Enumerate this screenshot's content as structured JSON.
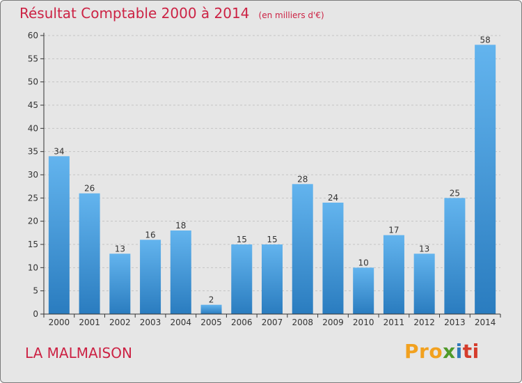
{
  "chart_data": {
    "type": "bar",
    "title": "Résultat Comptable 2000 à 2014",
    "subtitle": "(en milliers d'€)",
    "xlabel": "",
    "ylabel": "",
    "ylim": [
      0,
      60
    ],
    "yticks": [
      0,
      5,
      10,
      15,
      20,
      25,
      30,
      35,
      40,
      45,
      50,
      55,
      60
    ],
    "grid": "horizontal-dashed",
    "categories": [
      "2000",
      "2001",
      "2002",
      "2003",
      "2004",
      "2005",
      "2006",
      "2007",
      "2008",
      "2009",
      "2010",
      "2011",
      "2012",
      "2013",
      "2014"
    ],
    "values": [
      34,
      26,
      13,
      16,
      18,
      2,
      15,
      15,
      28,
      24,
      10,
      17,
      13,
      25,
      58
    ]
  },
  "place": "LA MALMAISON",
  "brand": {
    "p1": "Pro",
    "p2": "x",
    "p3": "i",
    "p4": "ti"
  },
  "colors": {
    "title": "#cc2244",
    "bar_light": "#63b4ee",
    "bar_dark": "#2a7cbf",
    "background": "#e6e6e6",
    "axis": "#333333",
    "grid": "#c4c4c4"
  }
}
